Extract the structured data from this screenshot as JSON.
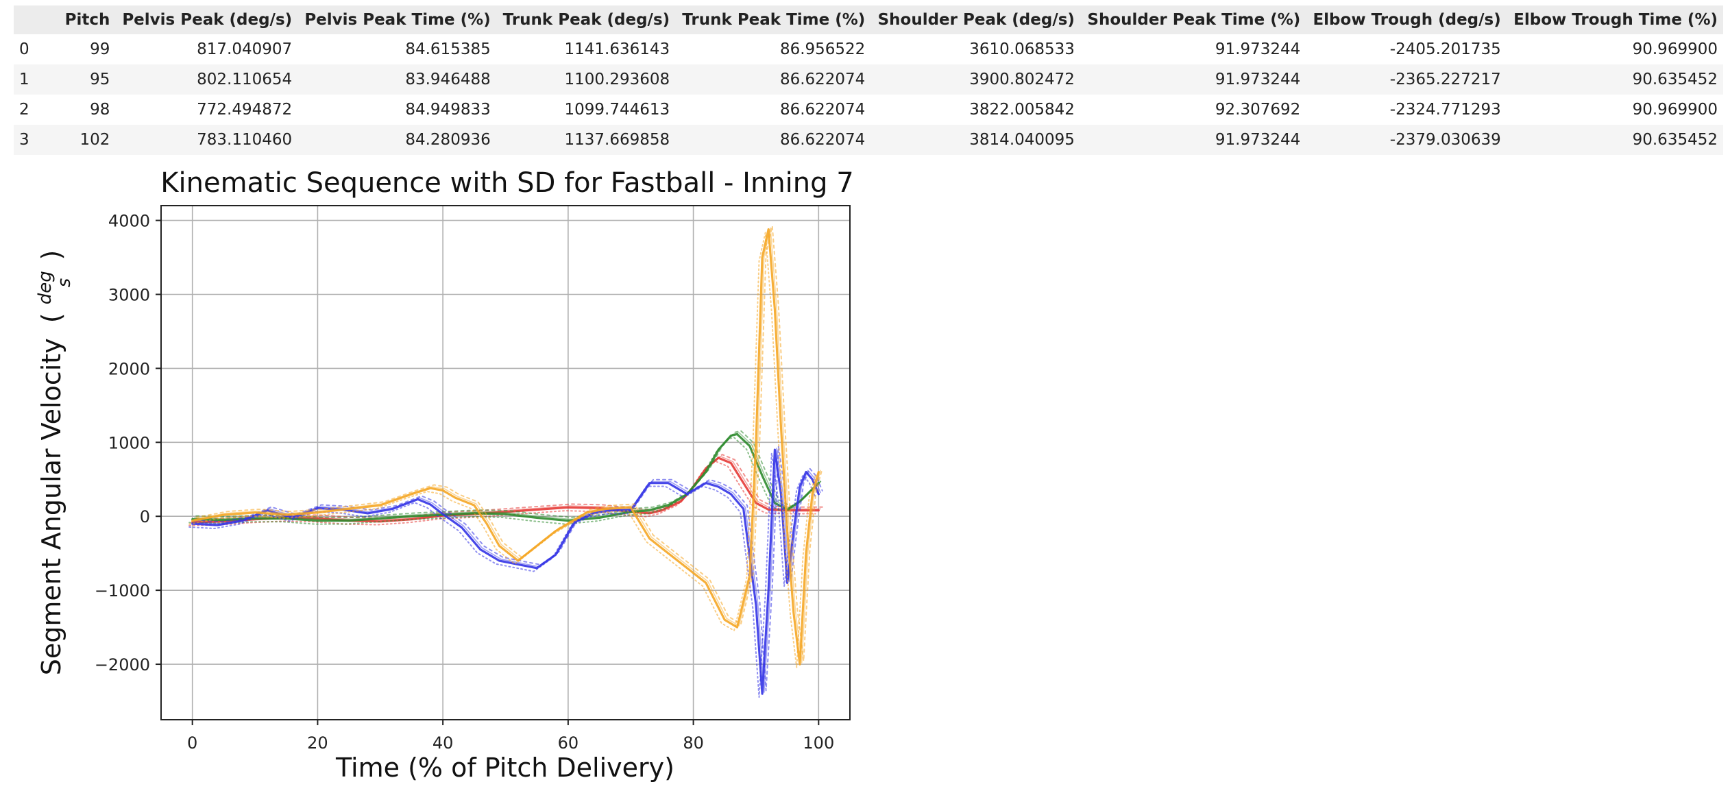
{
  "table": {
    "columns": [
      "",
      "Pitch",
      "Pelvis Peak (deg/s)",
      "Pelvis Peak Time (%)",
      "Trunk Peak (deg/s)",
      "Trunk Peak Time (%)",
      "Shoulder Peak (deg/s)",
      "Shoulder Peak Time (%)",
      "Elbow Trough (deg/s)",
      "Elbow Trough Time (%)"
    ],
    "rows": [
      [
        "0",
        "99",
        "817.040907",
        "84.615385",
        "1141.636143",
        "86.956522",
        "3610.068533",
        "91.973244",
        "-2405.201735",
        "90.969900"
      ],
      [
        "1",
        "95",
        "802.110654",
        "83.946488",
        "1100.293608",
        "86.622074",
        "3900.802472",
        "91.973244",
        "-2365.227217",
        "90.635452"
      ],
      [
        "2",
        "98",
        "772.494872",
        "84.949833",
        "1099.744613",
        "86.622074",
        "3822.005842",
        "92.307692",
        "-2324.771293",
        "90.969900"
      ],
      [
        "3",
        "102",
        "783.110460",
        "84.280936",
        "1137.669858",
        "86.622074",
        "3814.040095",
        "91.973244",
        "-2379.030639",
        "90.635452"
      ]
    ]
  },
  "chart_data": {
    "type": "line",
    "title": "Kinematic Sequence with SD for Fastball - Inning 7",
    "xlabel": "Time (% of Pitch Delivery)",
    "ylabel": "Segment Angular Velocity",
    "ylabel_unit_num": "deg",
    "ylabel_unit_den": "s",
    "xlim": [
      -5,
      105
    ],
    "ylim": [
      -2750,
      4200
    ],
    "x_ticks": [
      0,
      20,
      40,
      60,
      80,
      100
    ],
    "y_ticks": [
      4000,
      3000,
      2000,
      1000,
      0,
      -1000,
      -2000
    ],
    "y_tick_labels": [
      "4000",
      "3000",
      "2000",
      "1000",
      "0",
      "−1000",
      "−2000"
    ],
    "grid": true,
    "series": [
      {
        "color": "#e53935",
        "x": [
          0,
          5,
          10,
          15,
          20,
          25,
          30,
          35,
          40,
          45,
          50,
          55,
          60,
          65,
          70,
          73,
          75,
          78,
          80,
          82,
          84,
          86,
          88,
          90,
          92,
          95,
          100
        ],
        "y": [
          -80,
          -70,
          -40,
          -20,
          -30,
          -60,
          -70,
          -40,
          10,
          30,
          60,
          90,
          120,
          110,
          60,
          40,
          80,
          200,
          400,
          650,
          790,
          720,
          450,
          180,
          90,
          80,
          80
        ]
      },
      {
        "color": "#2e8b2e",
        "x": [
          0,
          5,
          10,
          15,
          20,
          25,
          30,
          35,
          40,
          45,
          50,
          55,
          60,
          65,
          70,
          73,
          76,
          79,
          82,
          84,
          86,
          87,
          89,
          91,
          93,
          95,
          97,
          100
        ],
        "y": [
          -40,
          -50,
          -30,
          -30,
          -60,
          -60,
          -30,
          0,
          20,
          40,
          30,
          -20,
          -60,
          -20,
          60,
          80,
          150,
          300,
          600,
          900,
          1090,
          1110,
          950,
          550,
          180,
          90,
          200,
          450
        ]
      },
      {
        "color": "#3333e6",
        "x": [
          0,
          4,
          8,
          12,
          16,
          20,
          24,
          28,
          32,
          36,
          38,
          40,
          43,
          46,
          49,
          52,
          55,
          58,
          61,
          64,
          67,
          70,
          73,
          76,
          79,
          82,
          84,
          86,
          88,
          90,
          91,
          92,
          93,
          94,
          95,
          96,
          97,
          98,
          99,
          100
        ],
        "y": [
          -100,
          -120,
          -60,
          80,
          -20,
          110,
          90,
          40,
          100,
          230,
          160,
          30,
          -150,
          -450,
          -600,
          -650,
          -700,
          -520,
          -80,
          40,
          80,
          80,
          450,
          450,
          300,
          450,
          400,
          300,
          100,
          -1200,
          -2400,
          -1000,
          900,
          300,
          -900,
          -200,
          400,
          600,
          500,
          300
        ]
      },
      {
        "color": "#f5a623",
        "x": [
          0,
          5,
          10,
          15,
          20,
          25,
          30,
          35,
          38,
          40,
          42,
          45,
          47,
          49,
          52,
          55,
          58,
          60,
          63,
          66,
          70,
          73,
          76,
          79,
          82,
          85,
          87,
          89,
          90,
          91,
          92,
          93,
          94,
          95,
          96,
          97,
          98,
          99,
          100
        ],
        "y": [
          -60,
          20,
          50,
          20,
          50,
          100,
          150,
          300,
          380,
          350,
          250,
          150,
          -100,
          -400,
          -600,
          -400,
          -200,
          -100,
          50,
          100,
          120,
          -300,
          -500,
          -700,
          -900,
          -1400,
          -1500,
          -800,
          1000,
          3500,
          3880,
          2800,
          1200,
          -200,
          -1300,
          -2000,
          -500,
          300,
          600
        ]
      }
    ]
  }
}
